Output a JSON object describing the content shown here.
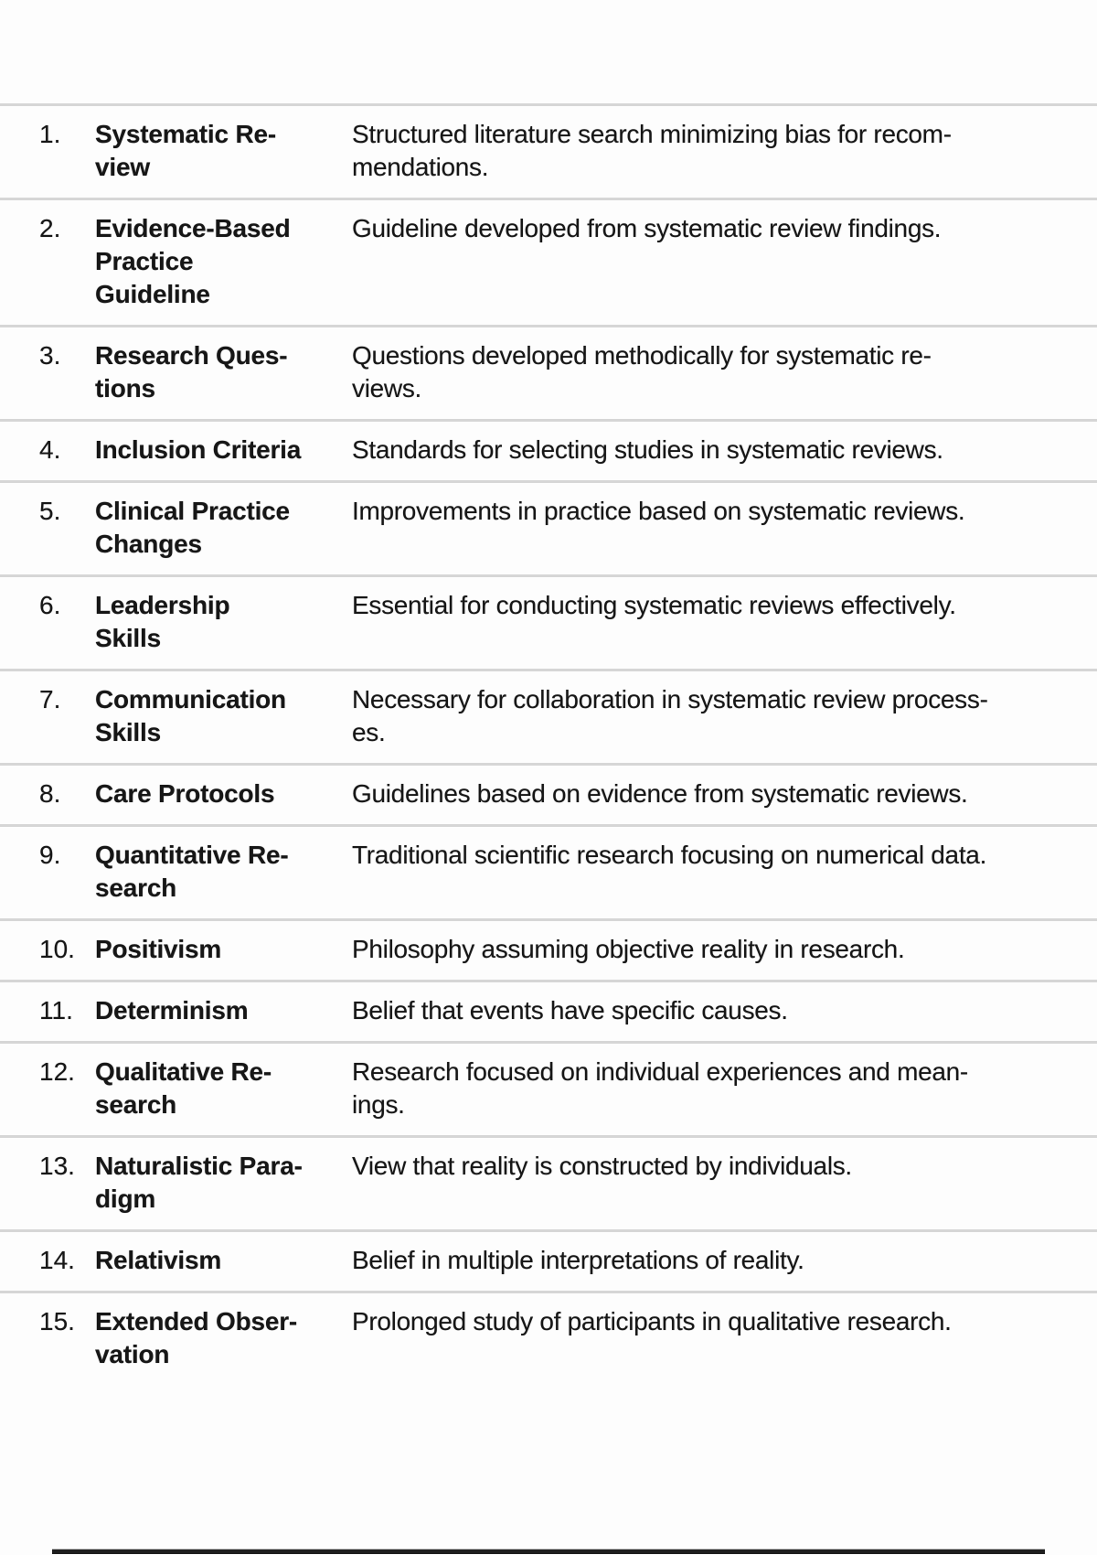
{
  "page": {
    "background": "#fdfdfd",
    "text_color": "#161616",
    "divider_color": "#d6d6d6",
    "bottom_rule_color": "#1e1e1e"
  },
  "glossary": {
    "rows": [
      {
        "number": "1.",
        "term": "Systematic Re-\nview",
        "definition": "Structured literature search minimizing bias for recom-\nmendations."
      },
      {
        "number": "2.",
        "term": "Evidence-Based\nPractice\nGuideline",
        "definition": "Guideline developed from systematic review findings."
      },
      {
        "number": "3.",
        "term": "Research Ques-\ntions",
        "definition": "Questions developed methodically for systematic re-\nviews."
      },
      {
        "number": "4.",
        "term": "Inclusion Criteria",
        "definition": "Standards for selecting studies in systematic reviews."
      },
      {
        "number": "5.",
        "term": "Clinical Practice\nChanges",
        "definition": "Improvements in practice based on systematic reviews."
      },
      {
        "number": "6.",
        "term": "Leadership\nSkills",
        "definition": "Essential for conducting systematic reviews effectively."
      },
      {
        "number": "7.",
        "term": "Communication\nSkills",
        "definition": "Necessary for collaboration in systematic review process-\nes."
      },
      {
        "number": "8.",
        "term": "Care Protocols",
        "definition": "Guidelines based on evidence from systematic reviews."
      },
      {
        "number": "9.",
        "term": "Quantitative Re-\nsearch",
        "definition": "Traditional scientific research focusing on numerical data."
      },
      {
        "number": "10.",
        "term": "Positivism",
        "definition": "Philosophy assuming objective reality in research."
      },
      {
        "number": "11.",
        "term": "Determinism",
        "definition": "Belief that events have specific causes."
      },
      {
        "number": "12.",
        "term": "Qualitative Re-\nsearch",
        "definition": "Research focused on individual experiences and mean-\nings."
      },
      {
        "number": "13.",
        "term": "Naturalistic Para-\ndigm",
        "definition": "View that reality is constructed by individuals."
      },
      {
        "number": "14.",
        "term": "Relativism",
        "definition": "Belief in multiple interpretations of reality."
      },
      {
        "number": "15.",
        "term": "Extended Obser-\nvation",
        "definition": "Prolonged study of participants in qualitative research."
      }
    ]
  }
}
